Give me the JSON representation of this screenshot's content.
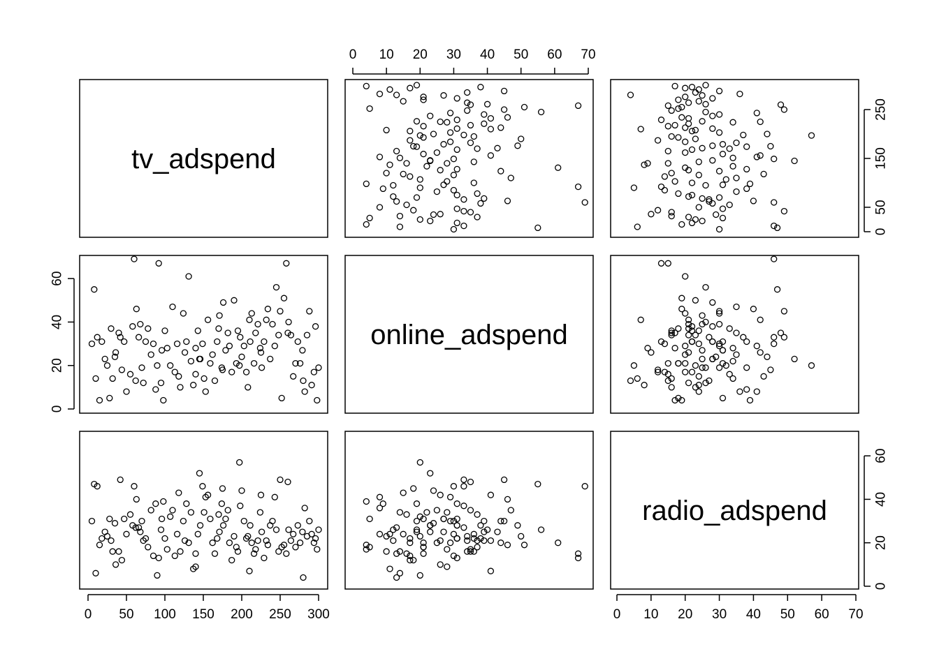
{
  "chart_data": {
    "type": "scatter",
    "plot_kind": "scatterplot-matrix",
    "variables": [
      "tv_adspend",
      "online_adspend",
      "radio_adspend"
    ],
    "ranges": {
      "tv_adspend": [
        0,
        300
      ],
      "online_adspend": [
        0,
        70
      ],
      "radio_adspend": [
        0,
        70
      ]
    },
    "ticks": {
      "tv_adspend": [
        0,
        50,
        100,
        150,
        200,
        250,
        300
      ],
      "online_adspend": [
        0,
        10,
        20,
        30,
        40,
        50,
        60,
        70
      ],
      "online_adspend_left": [
        0,
        20,
        40,
        60
      ],
      "tv_adspend_right": [
        0,
        50,
        150,
        250
      ],
      "radio_adspend": [
        0,
        10,
        20,
        30,
        40,
        50,
        60,
        70
      ],
      "radio_adspend_right": [
        0,
        20,
        40,
        60
      ]
    },
    "grid": false,
    "records": [
      [
        5,
        30,
        30
      ],
      [
        8,
        55,
        47
      ],
      [
        12,
        33,
        46
      ],
      [
        18,
        31,
        22
      ],
      [
        22,
        23,
        25
      ],
      [
        25,
        20,
        23
      ],
      [
        28,
        5,
        31
      ],
      [
        32,
        14,
        16
      ],
      [
        35,
        24,
        29
      ],
      [
        40,
        35,
        16
      ],
      [
        44,
        18,
        12
      ],
      [
        47,
        31,
        31
      ],
      [
        50,
        8,
        24
      ],
      [
        55,
        16,
        33
      ],
      [
        58,
        38,
        28
      ],
      [
        60,
        69,
        46
      ],
      [
        63,
        46,
        40
      ],
      [
        66,
        33,
        27
      ],
      [
        70,
        19,
        30
      ],
      [
        72,
        12,
        21
      ],
      [
        75,
        31,
        22
      ],
      [
        78,
        37,
        18
      ],
      [
        82,
        25,
        35
      ],
      [
        85,
        30,
        14
      ],
      [
        88,
        9,
        38
      ],
      [
        92,
        67,
        13
      ],
      [
        95,
        12,
        26
      ],
      [
        98,
        4,
        39
      ],
      [
        100,
        36,
        22
      ],
      [
        103,
        28,
        17
      ],
      [
        107,
        20,
        32
      ],
      [
        110,
        47,
        35
      ],
      [
        113,
        17,
        14
      ],
      [
        116,
        30,
        24
      ],
      [
        120,
        10,
        16
      ],
      [
        124,
        44,
        30
      ],
      [
        126,
        26,
        21
      ],
      [
        128,
        31,
        38
      ],
      [
        131,
        61,
        20
      ],
      [
        134,
        22,
        34
      ],
      [
        137,
        11,
        8
      ],
      [
        140,
        16,
        15
      ],
      [
        143,
        36,
        24
      ],
      [
        146,
        23,
        28
      ],
      [
        149,
        30,
        46
      ],
      [
        151,
        14,
        34
      ],
      [
        153,
        8,
        41
      ],
      [
        156,
        41,
        42
      ],
      [
        159,
        21,
        31
      ],
      [
        162,
        25,
        20
      ],
      [
        165,
        13,
        15
      ],
      [
        168,
        31,
        22
      ],
      [
        171,
        43,
        25
      ],
      [
        174,
        19,
        38
      ],
      [
        176,
        49,
        28
      ],
      [
        179,
        27,
        31
      ],
      [
        182,
        35,
        35
      ],
      [
        184,
        29,
        20
      ],
      [
        187,
        17,
        12
      ],
      [
        190,
        50,
        23
      ],
      [
        193,
        21,
        18
      ],
      [
        195,
        36,
        16
      ],
      [
        198,
        33,
        37
      ],
      [
        200,
        24,
        44
      ],
      [
        203,
        29,
        30
      ],
      [
        206,
        17,
        22
      ],
      [
        208,
        10,
        23
      ],
      [
        211,
        31,
        28
      ],
      [
        213,
        44,
        20
      ],
      [
        216,
        21,
        15
      ],
      [
        218,
        35,
        17
      ],
      [
        221,
        39,
        21
      ],
      [
        224,
        28,
        34
      ],
      [
        226,
        19,
        25
      ],
      [
        229,
        31,
        13
      ],
      [
        232,
        41,
        21
      ],
      [
        234,
        46,
        19
      ],
      [
        237,
        23,
        28
      ],
      [
        240,
        39,
        30
      ],
      [
        243,
        29,
        41
      ],
      [
        245,
        56,
        26
      ],
      [
        248,
        34,
        16
      ],
      [
        252,
        5,
        18
      ],
      [
        255,
        51,
        19
      ],
      [
        258,
        67,
        15
      ],
      [
        261,
        40,
        26
      ],
      [
        264,
        34,
        21
      ],
      [
        267,
        15,
        24
      ],
      [
        270,
        21,
        18
      ],
      [
        273,
        31,
        28
      ],
      [
        276,
        21,
        20
      ],
      [
        279,
        27,
        25
      ],
      [
        282,
        8,
        36
      ],
      [
        285,
        34,
        23
      ],
      [
        288,
        45,
        30
      ],
      [
        291,
        11,
        24
      ],
      [
        294,
        17,
        20
      ],
      [
        296,
        38,
        22
      ],
      [
        298,
        4,
        17
      ],
      [
        300,
        19,
        26
      ],
      [
        15,
        4,
        19
      ],
      [
        42,
        33,
        49
      ],
      [
        68,
        39,
        25
      ],
      [
        96,
        27,
        31
      ],
      [
        118,
        15,
        43
      ],
      [
        145,
        23,
        52
      ],
      [
        170,
        37,
        33
      ],
      [
        197,
        20,
        57
      ],
      [
        225,
        26,
        42
      ],
      [
        260,
        35,
        48
      ],
      [
        10,
        14,
        6
      ],
      [
        36,
        26,
        10
      ],
      [
        62,
        13,
        27
      ],
      [
        90,
        20,
        5
      ],
      [
        140,
        28,
        9
      ],
      [
        175,
        18,
        45
      ],
      [
        210,
        41,
        7
      ],
      [
        250,
        45,
        49
      ],
      [
        280,
        13,
        4
      ],
      [
        30,
        37,
        21
      ]
    ]
  }
}
